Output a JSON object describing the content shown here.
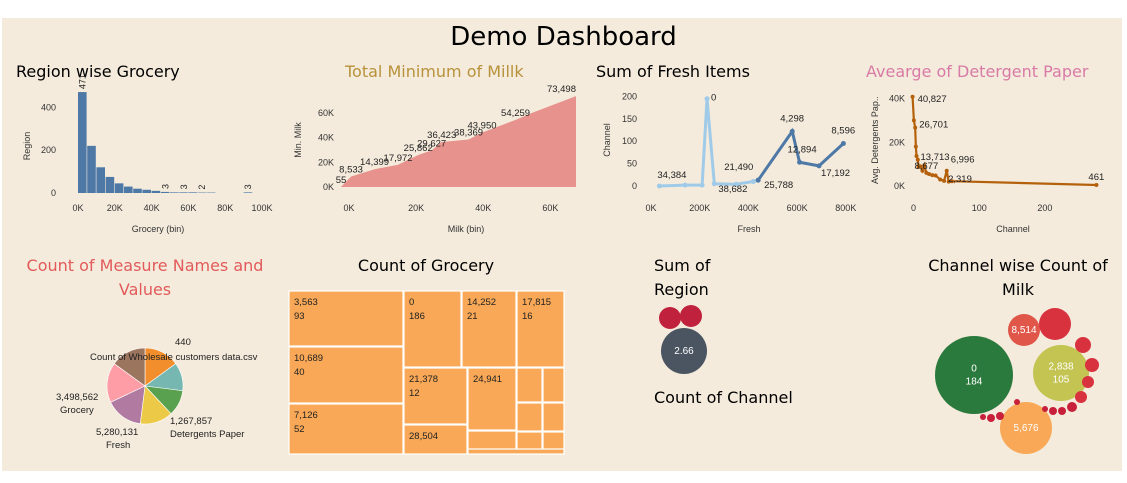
{
  "dashboard": {
    "title": "Demo Dashboard",
    "colors": {
      "background": "#f4ebdc",
      "bar_blue": "#4e79a7",
      "area_red": "#e8928d",
      "line_light": "#a0cbe8",
      "line_dark": "#4e79a7",
      "line_brown": "#b5610c",
      "tree_orange": "#f8a856"
    }
  },
  "chart_data": [
    {
      "id": "region_grocery",
      "type": "bar",
      "title": "Region wise Grocery",
      "title_color": "#000000",
      "xlabel": "Grocery (bin)",
      "ylabel": "Region",
      "x_ticks": [
        "0K",
        "20K",
        "40K",
        "60K",
        "80K",
        "100K"
      ],
      "x_tick_values": [
        0,
        20000,
        40000,
        60000,
        80000,
        100000
      ],
      "y_ticks": [
        0,
        200,
        400
      ],
      "ylim": [
        0,
        490
      ],
      "bin_width": 5000,
      "bins": [
        0,
        5000,
        10000,
        15000,
        20000,
        25000,
        30000,
        35000,
        40000,
        45000,
        50000,
        55000,
        60000,
        65000,
        70000,
        90000
      ],
      "values": [
        471,
        220,
        120,
        75,
        45,
        30,
        20,
        15,
        10,
        5,
        3,
        3,
        3,
        2,
        2,
        3
      ],
      "data_labels": [
        {
          "bin": 0,
          "text": "471"
        },
        {
          "bin": 45000,
          "text": "3"
        },
        {
          "bin": 55000,
          "text": "3"
        },
        {
          "bin": 65000,
          "text": "2"
        },
        {
          "bin": 90000,
          "text": "3"
        }
      ]
    },
    {
      "id": "min_milk",
      "type": "area",
      "title": "Total Minimum of Millk",
      "title_color": "#b8923a",
      "xlabel": "Milk (bin)",
      "ylabel": "Min. Milk",
      "x_ticks": [
        "0K",
        "20K",
        "40K",
        "60K"
      ],
      "x_tick_values": [
        0,
        20000,
        40000,
        60000
      ],
      "y_ticks": [
        "0K",
        "20K",
        "40K",
        "60K"
      ],
      "y_tick_values": [
        0,
        20000,
        40000,
        60000
      ],
      "xlim": [
        0,
        70000
      ],
      "ylim": [
        0,
        76000
      ],
      "x": [
        0,
        3000,
        10000,
        17000,
        23000,
        27000,
        30000,
        38000,
        42000,
        52000,
        57000,
        70000
      ],
      "y": [
        55,
        8533,
        14399,
        17972,
        25862,
        29627,
        36423,
        38369,
        43950,
        54259,
        60000,
        73498
      ],
      "labels": [
        {
          "x": 0,
          "y": 55,
          "text": "55"
        },
        {
          "x": 3000,
          "y": 8533,
          "text": "8,533"
        },
        {
          "x": 10000,
          "y": 14399,
          "text": "14,399"
        },
        {
          "x": 17000,
          "y": 17972,
          "text": "17,972"
        },
        {
          "x": 23000,
          "y": 25862,
          "text": "25,862"
        },
        {
          "x": 27000,
          "y": 29627,
          "text": "29,627"
        },
        {
          "x": 30000,
          "y": 36423,
          "text": "36,423"
        },
        {
          "x": 38000,
          "y": 38369,
          "text": "38,369"
        },
        {
          "x": 42000,
          "y": 43950,
          "text": "43,950"
        },
        {
          "x": 52000,
          "y": 54259,
          "text": "54,259"
        },
        {
          "x": 70000,
          "y": 73498,
          "text": "73,498"
        }
      ]
    },
    {
      "id": "fresh",
      "type": "line",
      "title": "Sum of Fresh Items",
      "title_color": "#000000",
      "xlabel": "Fresh",
      "ylabel": "Channel",
      "x_ticks": [
        "0K",
        "200K",
        "400K",
        "600K",
        "800K"
      ],
      "x_tick_values": [
        0,
        200000,
        400000,
        600000,
        800000
      ],
      "y_ticks": [
        0,
        50,
        100,
        150,
        200
      ],
      "xlim": [
        0,
        850000
      ],
      "ylim": [
        0,
        210
      ],
      "series": [
        {
          "color": "#a0cbe8",
          "points": [
            [
              34384,
              0
            ],
            [
              140000,
              2
            ],
            [
              210000,
              2
            ],
            [
              230000,
              195
            ],
            [
              260000,
              5
            ],
            [
              350000,
              4
            ],
            [
              420000,
              10
            ],
            [
              440000,
              13
            ]
          ]
        },
        {
          "color": "#4e79a7",
          "points": [
            [
              440000,
              13
            ],
            [
              580000,
              122
            ],
            [
              610000,
              53
            ],
            [
              690000,
              45
            ],
            [
              790000,
              95
            ]
          ]
        }
      ],
      "labels": [
        {
          "x": 34384,
          "y": 0,
          "text": "34,384"
        },
        {
          "x": 230000,
          "y": 195,
          "text": "0"
        },
        {
          "x": 260000,
          "y": 5,
          "text": "38,682"
        },
        {
          "x": 350000,
          "y": 4,
          "text": "21,490"
        },
        {
          "x": 440000,
          "y": 13,
          "text": "25,788"
        },
        {
          "x": 580000,
          "y": 122,
          "text": "4,298"
        },
        {
          "x": 610000,
          "y": 53,
          "text": "12,894"
        },
        {
          "x": 690000,
          "y": 45,
          "text": "17,192"
        },
        {
          "x": 790000,
          "y": 95,
          "text": "8,596"
        }
      ]
    },
    {
      "id": "detergent",
      "type": "line",
      "title": "Avearge of Detergent Paper",
      "title_color": "#d97aa6",
      "xlabel": "Channel",
      "ylabel": "Avg. Detergents Pap..",
      "x_ticks": [
        "0",
        "100",
        "200"
      ],
      "x_tick_values": [
        0,
        100,
        200
      ],
      "y_ticks": [
        "0K",
        "20K",
        "40K"
      ],
      "y_tick_values": [
        0,
        20000,
        40000
      ],
      "xlim": [
        -10,
        290
      ],
      "ylim": [
        0,
        43000
      ],
      "color": "#b5610c",
      "points": [
        [
          0,
          40827
        ],
        [
          2,
          30000
        ],
        [
          4,
          26701
        ],
        [
          5,
          18000
        ],
        [
          6,
          13713
        ],
        [
          8,
          12000
        ],
        [
          9,
          8677
        ],
        [
          12,
          9000
        ],
        [
          15,
          7000
        ],
        [
          18,
          9500
        ],
        [
          21,
          6000
        ],
        [
          25,
          5500
        ],
        [
          30,
          5000
        ],
        [
          35,
          4800
        ],
        [
          42,
          3000
        ],
        [
          48,
          2319
        ],
        [
          52,
          6996
        ],
        [
          55,
          2000
        ],
        [
          60,
          2200
        ],
        [
          280,
          461
        ]
      ],
      "labels": [
        {
          "x": 0,
          "y": 40827,
          "text": "40,827"
        },
        {
          "x": 4,
          "y": 26701,
          "text": "26,701"
        },
        {
          "x": 6,
          "y": 13713,
          "text": "13,713"
        },
        {
          "x": 9,
          "y": 8677,
          "text": "8,677"
        },
        {
          "x": 52,
          "y": 6996,
          "text": "6,996"
        },
        {
          "x": 48,
          "y": 2319,
          "text": "2,319"
        },
        {
          "x": 280,
          "y": 461,
          "text": "461"
        }
      ]
    },
    {
      "id": "measure_names",
      "type": "pie",
      "title": "Count of Measure Names and Values",
      "title_lines": [
        "Count of Measure Names and",
        "Values"
      ],
      "title_color": "#e25a5a",
      "slices": [
        {
          "color": "#f28e2b",
          "value": 15
        },
        {
          "color": "#76b7b2",
          "value": 12
        },
        {
          "color": "#59a14f",
          "value": 11
        },
        {
          "color": "#edc948",
          "value": 14
        },
        {
          "color": "#b07aa1",
          "value": 16
        },
        {
          "color": "#ff9da7",
          "value": 17
        },
        {
          "color": "#9c755f",
          "value": 15
        }
      ],
      "labels": [
        {
          "lines": [
            "440"
          ],
          "anchor": "top"
        },
        {
          "lines": [
            "Count of Wholesale customers data.csv"
          ],
          "anchor": "top-left"
        },
        {
          "lines": [
            "3,498,562",
            "Grocery"
          ],
          "anchor": "left"
        },
        {
          "lines": [
            "5,280,131",
            "Fresh"
          ],
          "anchor": "bottom"
        },
        {
          "lines": [
            "1,267,857",
            "Detergents Paper"
          ],
          "anchor": "bottom-right"
        }
      ]
    },
    {
      "id": "count_grocery",
      "type": "treemap",
      "title": "Count of Grocery",
      "title_color": "#000000",
      "color": "#f8a856",
      "cells": [
        {
          "lines": [
            "3,563",
            "93"
          ]
        },
        {
          "lines": [
            "10,689",
            "40"
          ]
        },
        {
          "lines": [
            "7,126",
            "52"
          ]
        },
        {
          "lines": [
            "0",
            "186"
          ]
        },
        {
          "lines": [
            "14,252",
            "21"
          ]
        },
        {
          "lines": [
            "17,815",
            "16"
          ]
        },
        {
          "lines": [
            "21,378",
            "12"
          ]
        },
        {
          "lines": [
            "24,941"
          ]
        },
        {
          "lines": [
            "28,504"
          ]
        },
        {
          "lines": []
        },
        {
          "lines": []
        },
        {
          "lines": []
        },
        {
          "lines": []
        },
        {
          "lines": []
        },
        {
          "lines": []
        },
        {
          "lines": []
        },
        {
          "lines": []
        }
      ]
    },
    {
      "id": "sum_region",
      "type": "bubble",
      "title": "Sum of Region",
      "title_lines": [
        "Sum of",
        "Region"
      ],
      "title_color": "#000000",
      "subtitle": "Count of Channel",
      "bubbles": [
        {
          "color": "#4b5562",
          "label": "2.66",
          "size": 2.66
        },
        {
          "color": "#c0223e",
          "label": "",
          "size": 0.9
        },
        {
          "color": "#c0223e",
          "label": "",
          "size": 0.9
        }
      ]
    },
    {
      "id": "channel_milk",
      "type": "bubble",
      "title": "Channel wise Count of Milk",
      "title_lines": [
        "Channel wise Count of",
        "Milk"
      ],
      "title_color": "#000000",
      "bubbles": [
        {
          "color": "#2b7a3d",
          "lines": [
            "0",
            "184"
          ]
        },
        {
          "color": "#c3c452",
          "lines": [
            "2,838",
            "105"
          ]
        },
        {
          "color": "#f8a856",
          "lines": [
            "5,676"
          ]
        },
        {
          "color": "#e0574a",
          "lines": [
            "8,514"
          ]
        },
        {
          "color": "#d8323f",
          "lines": []
        },
        {
          "color": "#d8323f",
          "lines": []
        },
        {
          "color": "#d8323f",
          "lines": []
        },
        {
          "color": "#d8323f",
          "lines": []
        },
        {
          "color": "#d8323f",
          "lines": []
        },
        {
          "color": "#c8203a",
          "lines": []
        },
        {
          "color": "#c8203a",
          "lines": []
        },
        {
          "color": "#c8203a",
          "lines": []
        },
        {
          "color": "#c8203a",
          "lines": []
        },
        {
          "color": "#c8203a",
          "lines": []
        },
        {
          "color": "#c8203a",
          "lines": []
        },
        {
          "color": "#c8203a",
          "lines": []
        },
        {
          "color": "#c8203a",
          "lines": []
        }
      ]
    }
  ]
}
